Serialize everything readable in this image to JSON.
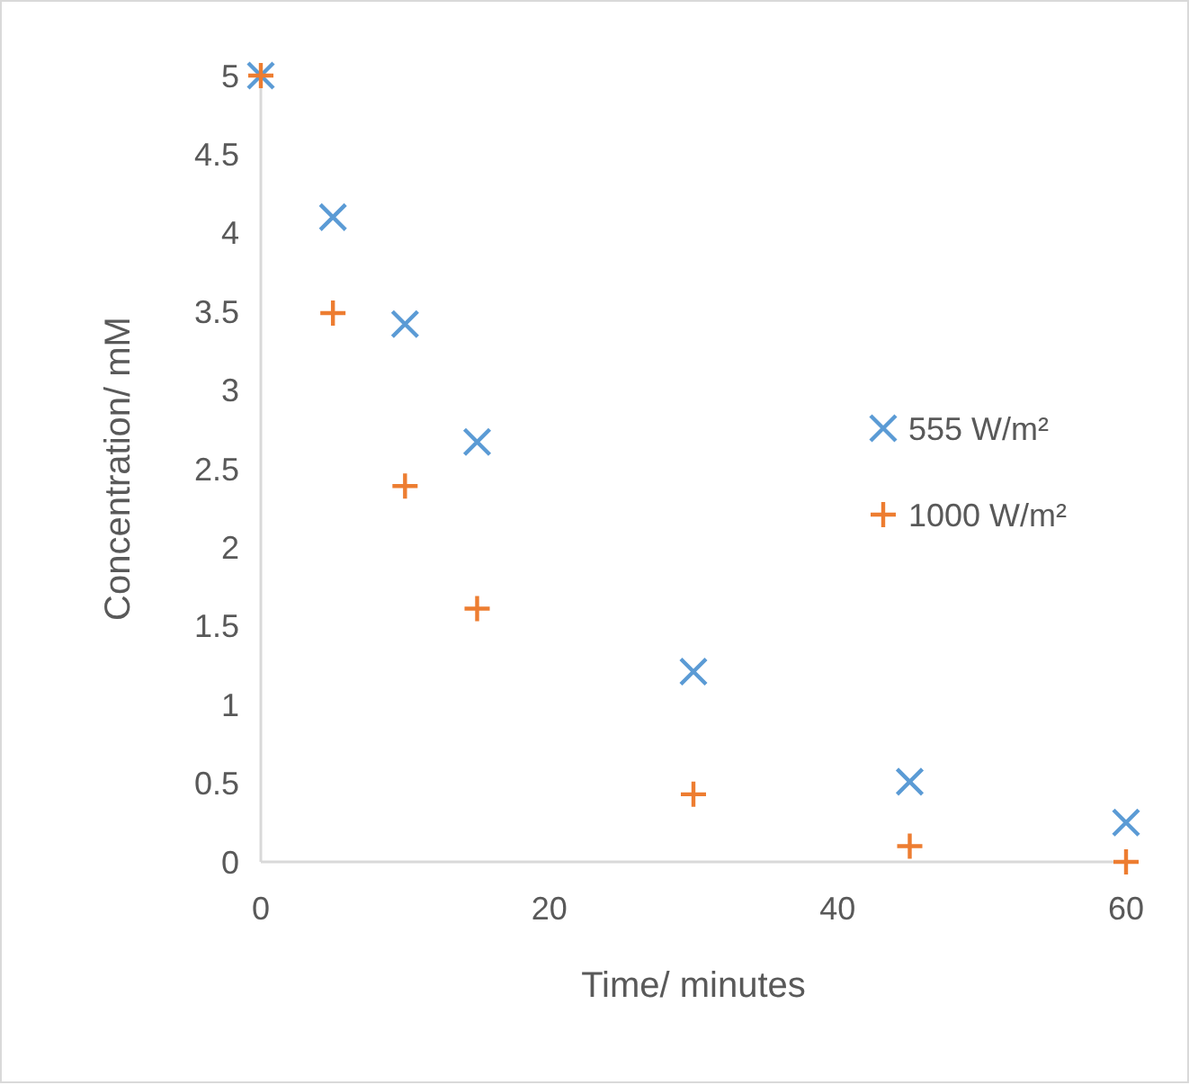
{
  "chart_data": {
    "type": "scatter",
    "xlabel": "Time/ minutes",
    "ylabel": "Concentration/ mM",
    "xlim": [
      0,
      60
    ],
    "xticks": [
      0,
      20,
      40,
      60
    ],
    "ylim": [
      0,
      5
    ],
    "yticks": [
      0,
      0.5,
      1,
      1.5,
      2,
      2.5,
      3,
      3.5,
      4,
      4.5,
      5
    ],
    "grid": false,
    "legend": "right",
    "series": [
      {
        "name": "555 W/m²",
        "color": "#5b9bd5",
        "marker": "cross",
        "x": [
          0,
          5,
          10,
          15,
          30,
          45,
          60
        ],
        "values": [
          5,
          4.1,
          3.42,
          2.67,
          1.21,
          0.51,
          0.25
        ]
      },
      {
        "name": "1000 W/m²",
        "color": "#ed7d31",
        "marker": "plus",
        "x": [
          0,
          5,
          10,
          15,
          30,
          45,
          60
        ],
        "values": [
          5,
          3.49,
          2.39,
          1.61,
          0.43,
          0.1,
          0
        ]
      }
    ]
  }
}
